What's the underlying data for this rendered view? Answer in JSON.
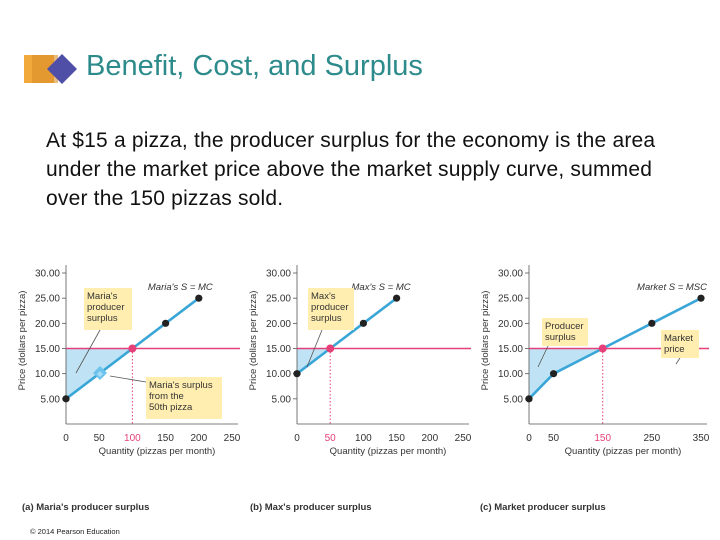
{
  "slide": {
    "title": "Benefit, Cost, and Surplus",
    "body": "At $15 a pizza, the producer surplus for the economy is the area under the market price above the market supply curve, summed over the 150 pizzas sold.",
    "copyright": "© 2014 Pearson Education"
  },
  "colors": {
    "title": "#2e8b8b",
    "supply": "#3aa6d8",
    "price": "#e6407a",
    "surplus": "#bfe3f4",
    "label_box": "#ffeeb0"
  },
  "chart_data": [
    {
      "type": "line",
      "caption": "(a) Maria's producer surplus",
      "xlabel": "Quantity (pizzas per month)",
      "ylabel": "Price (dollars per pizza)",
      "xlim": [
        0,
        250
      ],
      "ylim": [
        0,
        30
      ],
      "x_ticks": [
        "0",
        "50",
        "100",
        "150",
        "200",
        "250"
      ],
      "y_ticks": [
        "5.00",
        "10.00",
        "15.00",
        "20.00",
        "25.00",
        "30.00"
      ],
      "series": [
        {
          "name": "Maria's S = MC",
          "x": [
            0,
            50,
            100,
            150,
            200
          ],
          "y": [
            5,
            10,
            15,
            20,
            25
          ]
        }
      ],
      "price_line": {
        "value": 15,
        "label": "15.00"
      },
      "equilibrium": {
        "x": 100,
        "y": 15
      },
      "annotations": [
        "Maria's producer surplus",
        "Maria's surplus from the 50th pizza"
      ]
    },
    {
      "type": "line",
      "caption": "(b) Max's producer surplus",
      "xlabel": "Quantity (pizzas per month)",
      "ylabel": "Price (dollars per pizza)",
      "xlim": [
        0,
        250
      ],
      "ylim": [
        0,
        30
      ],
      "x_ticks": [
        "0",
        "50",
        "100",
        "150",
        "200",
        "250"
      ],
      "y_ticks": [
        "5.00",
        "10.00",
        "15.00",
        "20.00",
        "25.00",
        "30.00"
      ],
      "series": [
        {
          "name": "Max's S = MC",
          "x": [
            0,
            50,
            100,
            150
          ],
          "y": [
            10,
            15,
            20,
            25
          ]
        }
      ],
      "price_line": {
        "value": 15,
        "label": "15.00"
      },
      "equilibrium": {
        "x": 50,
        "y": 15
      },
      "annotations": [
        "Max's producer surplus"
      ]
    },
    {
      "type": "line",
      "caption": "(c) Market producer surplus",
      "xlabel": "Quantity (pizzas per month)",
      "ylabel": "Price (dollars per pizza)",
      "xlim": [
        0,
        350
      ],
      "ylim": [
        0,
        30
      ],
      "x_ticks": [
        "0",
        "50",
        "150",
        "250",
        "350"
      ],
      "y_ticks": [
        "5.00",
        "10.00",
        "15.00",
        "20.00",
        "25.00",
        "30.00"
      ],
      "series": [
        {
          "name": "Market S = MSC",
          "x": [
            0,
            50,
            150,
            250,
            350
          ],
          "y": [
            5,
            10,
            15,
            20,
            25
          ]
        }
      ],
      "price_line": {
        "value": 15,
        "label": "15.00"
      },
      "equilibrium": {
        "x": 150,
        "y": 15
      },
      "annotations": [
        "Producer surplus",
        "Market price"
      ]
    }
  ]
}
